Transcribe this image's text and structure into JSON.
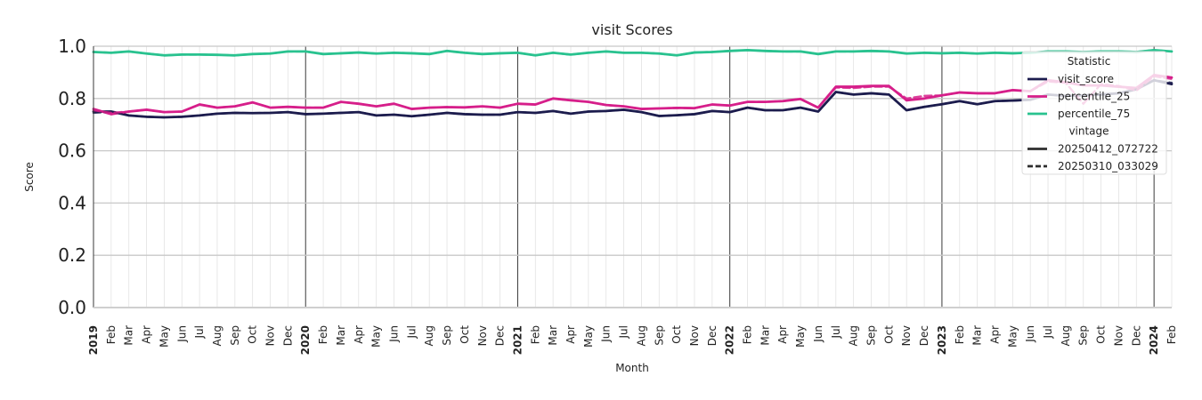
{
  "chart_data": {
    "type": "line",
    "title": "visit Scores",
    "xlabel": "Month",
    "ylabel": "Score",
    "ylim": [
      0,
      1.0
    ],
    "yticks": [
      "0.0",
      "0.2",
      "0.4",
      "0.6",
      "0.8",
      "1.0"
    ],
    "grid": true,
    "x_start": "2019-01",
    "x_end": "2024-02",
    "xtick_labels": [
      "2019",
      "Feb",
      "Mar",
      "Apr",
      "May",
      "Jun",
      "Jul",
      "Aug",
      "Sep",
      "Oct",
      "Nov",
      "Dec",
      "2020",
      "Feb",
      "Mar",
      "Apr",
      "May",
      "Jun",
      "Jul",
      "Aug",
      "Sep",
      "Oct",
      "Nov",
      "Dec",
      "2021",
      "Feb",
      "Mar",
      "Apr",
      "May",
      "Jun",
      "Jul",
      "Aug",
      "Sep",
      "Oct",
      "Nov",
      "Dec",
      "2022",
      "Feb",
      "Mar",
      "Apr",
      "May",
      "Jun",
      "Jul",
      "Aug",
      "Sep",
      "Oct",
      "Nov",
      "Dec",
      "2023",
      "Feb",
      "Mar",
      "Apr",
      "May",
      "Jun",
      "Jul",
      "Aug",
      "Sep",
      "Oct",
      "Nov",
      "Dec",
      "2024",
      "Feb"
    ],
    "legend": {
      "placement": "top-right",
      "groups": [
        {
          "title": "Statistic",
          "entries": [
            {
              "label": "visit_score",
              "color": "#1c1c4e",
              "style": "solid"
            },
            {
              "label": "percentile_25",
              "color": "#d61f8a",
              "style": "solid"
            },
            {
              "label": "percentile_75",
              "color": "#29c28f",
              "style": "solid"
            }
          ]
        },
        {
          "title": "vintage",
          "entries": [
            {
              "label": "20250412_072722",
              "color": "#2d2d2d",
              "style": "solid"
            },
            {
              "label": "20250310_033029",
              "color": "#2d2d2d",
              "style": "dashed"
            }
          ]
        }
      ]
    },
    "series": [
      {
        "name": "visit_score",
        "vintage": "20250412_072722",
        "color": "#1c1c4e",
        "values": [
          0.75,
          0.75,
          0.735,
          0.73,
          0.728,
          0.73,
          0.735,
          0.742,
          0.745,
          0.744,
          0.745,
          0.748,
          0.74,
          0.742,
          0.745,
          0.748,
          0.735,
          0.738,
          0.732,
          0.738,
          0.745,
          0.74,
          0.738,
          0.738,
          0.748,
          0.745,
          0.752,
          0.742,
          0.75,
          0.752,
          0.757,
          0.748,
          0.733,
          0.736,
          0.74,
          0.752,
          0.748,
          0.765,
          0.755,
          0.755,
          0.765,
          0.75,
          0.825,
          0.815,
          0.82,
          0.815,
          0.755,
          0.768,
          0.778,
          0.79,
          0.778,
          0.79,
          0.792,
          0.795,
          0.815,
          0.81,
          0.812,
          0.815,
          0.82,
          0.835,
          0.87,
          0.855
        ]
      },
      {
        "name": "percentile_25",
        "vintage": "20250412_072722",
        "color": "#d61f8a",
        "values": [
          0.76,
          0.74,
          0.75,
          0.757,
          0.748,
          0.75,
          0.777,
          0.765,
          0.77,
          0.785,
          0.765,
          0.768,
          0.765,
          0.765,
          0.787,
          0.78,
          0.77,
          0.78,
          0.76,
          0.765,
          0.767,
          0.766,
          0.77,
          0.765,
          0.78,
          0.777,
          0.8,
          0.793,
          0.787,
          0.775,
          0.77,
          0.76,
          0.762,
          0.764,
          0.763,
          0.777,
          0.773,
          0.787,
          0.787,
          0.79,
          0.798,
          0.765,
          0.845,
          0.845,
          0.848,
          0.848,
          0.793,
          0.8,
          0.812,
          0.823,
          0.82,
          0.82,
          0.832,
          0.828,
          0.87,
          0.862,
          0.85,
          0.85,
          0.845,
          0.84,
          0.89,
          0.88
        ]
      },
      {
        "name": "percentile_75",
        "vintage": "20250412_072722",
        "color": "#29c28f",
        "values": [
          0.978,
          0.975,
          0.98,
          0.972,
          0.965,
          0.968,
          0.968,
          0.967,
          0.965,
          0.97,
          0.972,
          0.98,
          0.98,
          0.97,
          0.973,
          0.976,
          0.972,
          0.975,
          0.973,
          0.97,
          0.982,
          0.975,
          0.97,
          0.973,
          0.975,
          0.965,
          0.975,
          0.968,
          0.975,
          0.98,
          0.975,
          0.975,
          0.972,
          0.965,
          0.976,
          0.978,
          0.982,
          0.985,
          0.982,
          0.98,
          0.98,
          0.97,
          0.98,
          0.98,
          0.982,
          0.98,
          0.972,
          0.975,
          0.973,
          0.975,
          0.972,
          0.975,
          0.973,
          0.975,
          0.98,
          0.98,
          0.978,
          0.98,
          0.98,
          0.978,
          0.985,
          0.98
        ]
      },
      {
        "name": "visit_score",
        "vintage": "20250310_033029",
        "color": "#1c1c4e",
        "values": [
          0.745,
          0.75,
          0.735,
          0.73,
          0.728,
          0.73,
          0.735,
          0.742,
          0.745,
          0.744,
          0.745,
          0.748,
          0.74,
          0.742,
          0.745,
          0.748,
          0.735,
          0.738,
          0.732,
          0.738,
          0.745,
          0.74,
          0.738,
          0.738,
          0.748,
          0.745,
          0.752,
          0.742,
          0.75,
          0.752,
          0.757,
          0.748,
          0.733,
          0.736,
          0.74,
          0.752,
          0.748,
          0.765,
          0.755,
          0.755,
          0.765,
          0.75,
          0.825,
          0.815,
          0.82,
          0.815,
          0.755,
          0.768,
          0.778,
          0.79,
          0.778,
          0.79,
          0.792,
          0.795,
          0.815,
          0.81,
          0.812,
          0.815,
          0.82,
          0.835,
          0.87,
          0.86
        ]
      },
      {
        "name": "percentile_25",
        "vintage": "20250310_033029",
        "color": "#d61f8a",
        "values": [
          0.755,
          0.745,
          0.75,
          0.757,
          0.748,
          0.75,
          0.777,
          0.765,
          0.77,
          0.785,
          0.765,
          0.768,
          0.765,
          0.765,
          0.787,
          0.78,
          0.77,
          0.78,
          0.76,
          0.765,
          0.767,
          0.766,
          0.77,
          0.765,
          0.78,
          0.777,
          0.8,
          0.793,
          0.787,
          0.775,
          0.77,
          0.76,
          0.762,
          0.764,
          0.763,
          0.777,
          0.773,
          0.787,
          0.787,
          0.79,
          0.798,
          0.765,
          0.842,
          0.84,
          0.845,
          0.845,
          0.8,
          0.81,
          0.812,
          0.823,
          0.82,
          0.82,
          0.832,
          0.828,
          0.865,
          0.86,
          0.78,
          0.855,
          0.848,
          0.83,
          0.885,
          0.875
        ]
      },
      {
        "name": "percentile_75",
        "vintage": "20250310_033029",
        "color": "#29c28f",
        "values": [
          0.978,
          0.975,
          0.98,
          0.972,
          0.965,
          0.968,
          0.968,
          0.967,
          0.965,
          0.97,
          0.972,
          0.98,
          0.98,
          0.97,
          0.973,
          0.976,
          0.972,
          0.975,
          0.973,
          0.97,
          0.982,
          0.975,
          0.97,
          0.973,
          0.975,
          0.965,
          0.975,
          0.968,
          0.975,
          0.98,
          0.975,
          0.975,
          0.972,
          0.965,
          0.976,
          0.978,
          0.982,
          0.985,
          0.982,
          0.98,
          0.98,
          0.97,
          0.98,
          0.98,
          0.982,
          0.98,
          0.972,
          0.975,
          0.973,
          0.975,
          0.972,
          0.975,
          0.973,
          0.975,
          0.98,
          0.98,
          0.978,
          0.98,
          0.98,
          0.978,
          0.985,
          0.98
        ]
      }
    ]
  }
}
